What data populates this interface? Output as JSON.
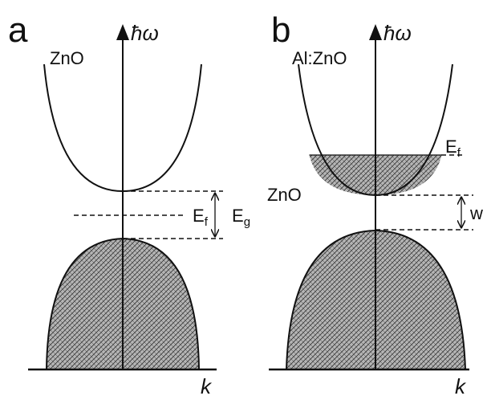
{
  "panel_a": {
    "letter": "a",
    "energy_axis": "ħω",
    "wavevector_axis": "k",
    "material": "ZnO",
    "fermi_label": {
      "main": "E",
      "sub": "f"
    },
    "gap_label": {
      "main": "E",
      "sub": "g"
    }
  },
  "panel_b": {
    "letter": "b",
    "energy_axis": "ħω",
    "wavevector_axis": "k",
    "doped_material": "Al:ZnO",
    "reference_material": "ZnO",
    "fermi_label": {
      "main": "E",
      "sub": "f"
    },
    "shift_label": "w"
  },
  "colors": {
    "line": "#111111",
    "hatch_fill": "#b5b5b5",
    "hatch_line": "#3a3a3a"
  }
}
